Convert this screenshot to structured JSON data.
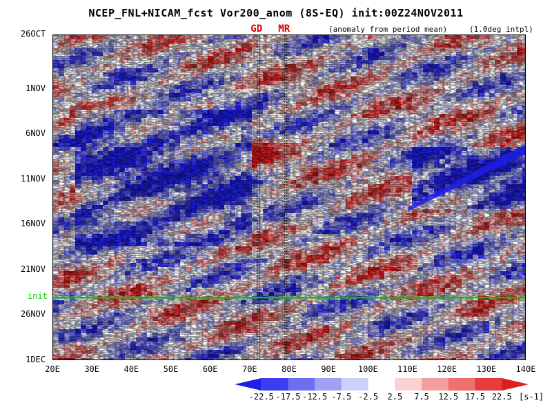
{
  "title": "NCEP_FNL+NICAM_fcst Vor200_anom (8S-EQ) init:00Z24NOV2011",
  "subtitle_left": "(anomaly from period mean)",
  "subtitle_right": "(1.0deg intpl)",
  "chart_data": {
    "type": "heatmap",
    "title": "NCEP_FNL+NICAM_fcst Vor200_anom (8S-EQ) init:00Z24NOV2011",
    "x_axis": {
      "ticks": [
        "20E",
        "30E",
        "40E",
        "50E",
        "60E",
        "70E",
        "80E",
        "90E",
        "100E",
        "110E",
        "120E",
        "130E",
        "140E"
      ],
      "range": [
        20,
        140
      ]
    },
    "y_axis": {
      "ticks": [
        "26OCT",
        "1NOV",
        "6NOV",
        "11NOV",
        "16NOV",
        "21NOV",
        "26NOV",
        "1DEC"
      ],
      "range": [
        "26OCT2011",
        "1DEC2011"
      ],
      "direction": "time increases downward"
    },
    "reference_lines": [
      {
        "label": "GD",
        "x": 72,
        "color": "#d40000",
        "style": "dashed"
      },
      {
        "label": "MR",
        "x": 79,
        "color": "#d40000",
        "style": "dashed"
      }
    ],
    "init_line": {
      "label": "init",
      "y": "24NOV2011",
      "color": "#00c800"
    },
    "colorbar": {
      "levels": [
        -22.5,
        -17.5,
        -12.5,
        -7.5,
        -2.5,
        2.5,
        7.5,
        12.5,
        17.5,
        22.5
      ],
      "labels": [
        "-22.5",
        "-17.5",
        "-12.5",
        "-7.5",
        "-2.5",
        "2.5",
        "7.5",
        "12.5",
        "17.5",
        "22.5"
      ],
      "unit": "[s-1]",
      "colors": [
        "#1e1ee6",
        "#3c3cf0",
        "#6e6ef0",
        "#a0a0f5",
        "#cdd2fa",
        "#ffffff",
        "#fad2d2",
        "#f5a0a0",
        "#ef6e6e",
        "#e63c3c",
        "#dc1e1e"
      ]
    },
    "features": [
      {
        "x": [
          25,
          70
        ],
        "y": [
          "3NOV",
          "18NOV"
        ],
        "sign": "negative",
        "note": "broad blue band"
      },
      {
        "x": [
          110,
          140
        ],
        "y": [
          "7NOV",
          "14NOV"
        ],
        "sign": "negative",
        "note": "diagonal blue streak toward 140E"
      },
      {
        "x": [
          65,
          75
        ],
        "y": [
          "6NOV",
          "9NOV"
        ],
        "sign": "positive",
        "note": "red patch"
      }
    ]
  }
}
